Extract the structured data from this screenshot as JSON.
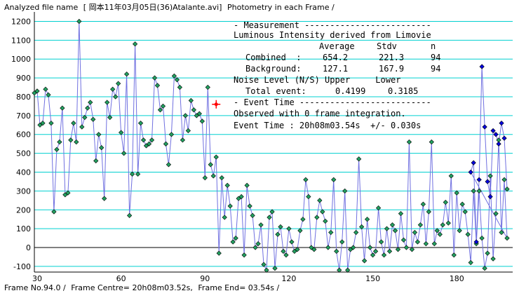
{
  "header": {
    "file_label": "Analyzed file name",
    "file_name": "[ 岡本11年03月05日(36)Atalante.avi]",
    "mode": "Photometry in each Frame /"
  },
  "footer": {
    "frame_no": "Frame No.94.0 /",
    "frame_centre": "Frame Centre= 20h08m03.52s,",
    "frame_end": "Frame End= 03.54s /"
  },
  "panel": {
    "measurement_header": "- Measurement -------------------------",
    "luminous_title": "Luminous Intensity derived from Limovie",
    "col_average": "Average",
    "col_stdv": "Stdv",
    "col_n": "n",
    "combined_label": "Combined  :",
    "combined_avg": "654.2",
    "combined_stdv": "221.3",
    "combined_n": "94",
    "background_label": "Background:",
    "background_avg": "127.1",
    "background_stdv": "167.9",
    "background_n": "94",
    "noise_label": "Noise Level (N/S) Upper     Lower",
    "total_label": "Total event:",
    "total_upper": "0.4199",
    "total_lower": "0.3185",
    "event_header": "- Event Time --------------------------",
    "observed": "Observed with 0 frame integration.",
    "event_time": "Event Time : 20h08m03.54s  +/- 0.030s"
  },
  "colors": {
    "grid": "#00d0d0",
    "line": "#7070e0",
    "green_point": "#22a060",
    "blue_point": "#0000e0",
    "marker": "#ff0000"
  },
  "chart_data": {
    "type": "scatter",
    "xlim": [
      29,
      200
    ],
    "ylim": [
      -130,
      1250
    ],
    "x_ticks": [
      30,
      60,
      90,
      120,
      150,
      180
    ],
    "y_ticks": [
      -100,
      0,
      100,
      200,
      300,
      400,
      500,
      600,
      700,
      800,
      900,
      1000,
      1100,
      1200
    ],
    "zero_line": 0,
    "marker_point": {
      "x": 94,
      "y": 760
    },
    "green_series": {
      "x_start": 29,
      "values": [
        820,
        830,
        650,
        660,
        840,
        810,
        660,
        190,
        520,
        560,
        740,
        280,
        290,
        570,
        660,
        560,
        1200,
        640,
        690,
        740,
        770,
        680,
        460,
        600,
        530,
        260,
        770,
        690,
        840,
        800,
        870,
        610,
        500,
        920,
        170,
        390,
        1080,
        390,
        660,
        570,
        540,
        550,
        570,
        900,
        860,
        730,
        750,
        550,
        440,
        600,
        910,
        890,
        850,
        570,
        700,
        620,
        780,
        730,
        700,
        710,
        670,
        370,
        850,
        440,
        380,
        480,
        -30,
        370,
        160,
        330,
        220,
        30,
        50,
        260,
        270,
        -40,
        330,
        220,
        170,
        0,
        20,
        120,
        -90,
        -120,
        160,
        190,
        -110,
        70,
        110,
        -20,
        -40,
        100,
        30,
        -20,
        -10,
        90,
        150,
        360,
        270,
        0,
        -10,
        160,
        250,
        190,
        140,
        0,
        80,
        360,
        -20,
        -120,
        30,
        300,
        -120,
        -10,
        0,
        80,
        470,
        110,
        -70,
        150,
        0,
        -40,
        -20,
        210,
        30,
        -40,
        100,
        -20,
        120,
        90,
        -10,
        180,
        40,
        0,
        560,
        -10,
        80,
        30,
        120,
        230,
        20,
        190,
        560,
        20,
        90,
        70,
        120,
        240,
        130,
        380,
        -40,
        290,
        90,
        230,
        190,
        70,
        -80,
        300,
        20,
        300,
        50,
        -110,
        -30,
        380,
        -60,
        180,
        570,
        80,
        360,
        50
      ],
      "y_at_185_196": null
    },
    "blue_series": {
      "x": [
        185,
        186,
        187,
        188,
        189,
        190,
        191,
        192,
        193,
        194,
        195,
        196,
        197
      ],
      "values": [
        400,
        450,
        30,
        360,
        960,
        640,
        350,
        270,
        620,
        600,
        550,
        660,
        580
      ],
      "tail": {
        "x": 198,
        "y": 310
      }
    }
  }
}
